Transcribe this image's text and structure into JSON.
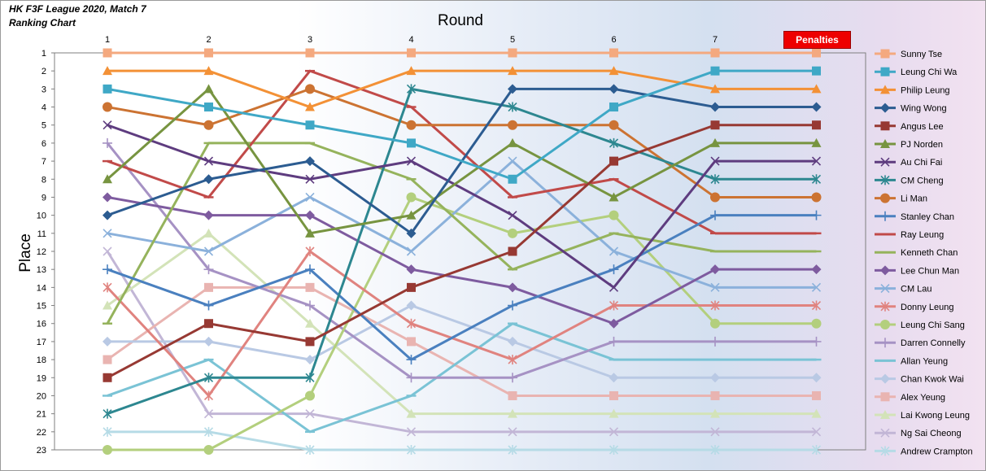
{
  "chart_data": {
    "type": "line",
    "title": "HK F3F League 2020, Match 7",
    "subtitle": "Ranking Chart",
    "xlabel": "Round",
    "ylabel": "Place",
    "penalties_label": "Penalties",
    "x": [
      "1",
      "2",
      "3",
      "4",
      "5",
      "6",
      "7"
    ],
    "xlim": [
      1,
      8
    ],
    "ylim": [
      1,
      23
    ],
    "y_ticks": [
      "1",
      "2",
      "3",
      "4",
      "5",
      "6",
      "7",
      "8",
      "9",
      "10",
      "11",
      "12",
      "13",
      "14",
      "15",
      "16",
      "17",
      "18",
      "19",
      "20",
      "21",
      "22",
      "23"
    ],
    "y_inverted": true,
    "grid": false,
    "legend_position": "right",
    "series": [
      {
        "name": "Sunny Tse",
        "color": "#f4a97f",
        "marker": "square",
        "values": [
          1,
          1,
          1,
          1,
          1,
          1,
          1
        ],
        "penalty": 1
      },
      {
        "name": "Leung Chi Wa",
        "color": "#3fa8c6",
        "marker": "square",
        "values": [
          3,
          4,
          5,
          6,
          8,
          4,
          2
        ],
        "penalty": 2
      },
      {
        "name": "Philip Leung",
        "color": "#f39136",
        "marker": "triangle",
        "values": [
          2,
          2,
          4,
          2,
          2,
          2,
          3
        ],
        "penalty": 3
      },
      {
        "name": "Wing Wong",
        "color": "#2c5c91",
        "marker": "diamond",
        "values": [
          10,
          8,
          7,
          11,
          3,
          3,
          4
        ],
        "penalty": 4
      },
      {
        "name": "Angus Lee",
        "color": "#973933",
        "marker": "square",
        "values": [
          19,
          16,
          17,
          14,
          12,
          7,
          5
        ],
        "penalty": 5
      },
      {
        "name": "PJ Norden",
        "color": "#779440",
        "marker": "triangle",
        "values": [
          8,
          3,
          11,
          10,
          6,
          9,
          6
        ],
        "penalty": 6
      },
      {
        "name": "Au Chi Fai",
        "color": "#5e3c7f",
        "marker": "x",
        "values": [
          5,
          7,
          8,
          7,
          10,
          14,
          7
        ],
        "penalty": 7
      },
      {
        "name": "CM Cheng",
        "color": "#2d8790",
        "marker": "star",
        "values": [
          21,
          19,
          19,
          3,
          4,
          6,
          8
        ],
        "penalty": 8
      },
      {
        "name": "Li Man",
        "color": "#cc7332",
        "marker": "circle",
        "values": [
          4,
          5,
          3,
          5,
          5,
          5,
          9
        ],
        "penalty": 9
      },
      {
        "name": "Stanley Chan",
        "color": "#4a80bf",
        "marker": "plus",
        "values": [
          13,
          15,
          13,
          18,
          15,
          13,
          10
        ],
        "penalty": 10
      },
      {
        "name": "Ray Leung",
        "color": "#c14a49",
        "marker": "dash",
        "values": [
          7,
          9,
          2,
          4,
          9,
          8,
          11
        ],
        "penalty": 11
      },
      {
        "name": "Kenneth Chan",
        "color": "#95b35c",
        "marker": "dash",
        "values": [
          16,
          6,
          6,
          8,
          13,
          11,
          12
        ],
        "penalty": 12
      },
      {
        "name": "Lee Chun Man",
        "color": "#7e5b9f",
        "marker": "diamond",
        "values": [
          9,
          10,
          10,
          13,
          14,
          16,
          13
        ],
        "penalty": 13
      },
      {
        "name": "CM Lau",
        "color": "#8bb1db",
        "marker": "x",
        "values": [
          11,
          12,
          9,
          12,
          7,
          12,
          14
        ],
        "penalty": 14
      },
      {
        "name": "Donny Leung",
        "color": "#e0837f",
        "marker": "star",
        "values": [
          14,
          20,
          12,
          16,
          18,
          15,
          15
        ],
        "penalty": 15
      },
      {
        "name": "Leung Chi Sang",
        "color": "#b3cf7d",
        "marker": "circle",
        "values": [
          23,
          23,
          20,
          9,
          11,
          10,
          16
        ],
        "penalty": 16
      },
      {
        "name": "Darren Connelly",
        "color": "#a692c4",
        "marker": "plus",
        "values": [
          6,
          13,
          15,
          19,
          19,
          17,
          17
        ],
        "penalty": 17
      },
      {
        "name": "Allan Yeung",
        "color": "#7ac3d5",
        "marker": "dash",
        "values": [
          20,
          18,
          22,
          20,
          16,
          18,
          18
        ],
        "penalty": 18
      },
      {
        "name": "Chan Kwok Wai",
        "color": "#b9c9e4",
        "marker": "diamond",
        "values": [
          17,
          17,
          18,
          15,
          17,
          19,
          19
        ],
        "penalty": 19
      },
      {
        "name": "Alex Yeung",
        "color": "#e9b4b1",
        "marker": "square",
        "values": [
          18,
          14,
          14,
          17,
          20,
          20,
          20
        ],
        "penalty": 20
      },
      {
        "name": "Lai Kwong Leung",
        "color": "#d3e3b8",
        "marker": "triangle",
        "values": [
          15,
          11,
          16,
          21,
          21,
          21,
          21
        ],
        "penalty": 21
      },
      {
        "name": "Ng Sai Cheong",
        "color": "#c2b6d6",
        "marker": "x",
        "values": [
          12,
          21,
          21,
          22,
          22,
          22,
          22
        ],
        "penalty": 22
      },
      {
        "name": "Andrew Crampton",
        "color": "#b6dbe6",
        "marker": "star",
        "values": [
          22,
          22,
          23,
          23,
          23,
          23,
          23
        ],
        "penalty": 23
      }
    ]
  }
}
